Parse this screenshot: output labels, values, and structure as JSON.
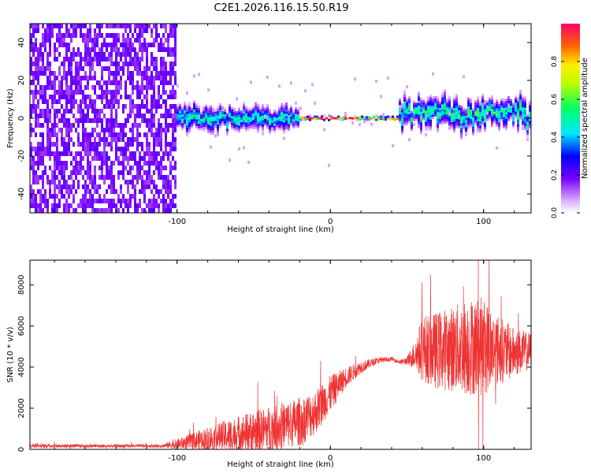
{
  "title": "C2E1.2026.116.15.50.R19",
  "chart_data": [
    {
      "type": "heatmap",
      "description": "spectrogram",
      "xlabel": "Height of straight line (km)",
      "ylabel": "Frequency (Hz)",
      "xlim": [
        -196,
        131
      ],
      "ylim": [
        -50,
        50
      ],
      "xticks": [
        -100,
        0,
        100
      ],
      "xtick_labels": [
        "-100",
        "0",
        "100"
      ],
      "yticks": [
        -40,
        -20,
        0,
        20,
        40
      ],
      "ytick_labels": [
        "-40",
        "-20",
        "0",
        "20",
        "40"
      ],
      "colorbar": {
        "label": "Normalized spectral amplitude",
        "range": [
          0,
          1
        ],
        "ticks": [
          0.0,
          0.2,
          0.4,
          0.6,
          0.8
        ],
        "tick_labels": [
          "0.0",
          "0.2",
          "0.4",
          "0.6",
          "0.8"
        ]
      },
      "regions": [
        {
          "x_range": [
            -196,
            -100
          ],
          "pattern": "broadband noise",
          "freq_range": [
            -50,
            50
          ],
          "amplitude": 0.15
        },
        {
          "x_range": [
            -100,
            -20
          ],
          "pattern": "band near 0 Hz",
          "center_freq": 0,
          "spread_hz": 6,
          "amplitude": 0.45
        },
        {
          "x_range": [
            -20,
            45
          ],
          "pattern": "narrow line at 0 Hz",
          "center_freq": 0,
          "spread_hz": 1,
          "amplitude": 0.95
        },
        {
          "x_range": [
            45,
            131
          ],
          "pattern": "band near 0 Hz with excursions",
          "center_freq": 2,
          "spread_hz": 7,
          "amplitude": 0.5
        }
      ]
    },
    {
      "type": "line",
      "xlabel": "Height of straight line (km)",
      "ylabel": "SNR (10 * v/v)",
      "xlim": [
        -196,
        131
      ],
      "ylim": [
        0,
        9200
      ],
      "xticks": [
        -100,
        0,
        100
      ],
      "xtick_labels": [
        "-100",
        "0",
        "100"
      ],
      "yticks": [
        0,
        2000,
        4000,
        6000,
        8000
      ],
      "ytick_labels": [
        "0",
        "2000",
        "4000",
        "6000",
        "8000"
      ],
      "color": "#ee3333",
      "envelope": {
        "x": [
          -196,
          -150,
          -110,
          -100,
          -80,
          -60,
          -40,
          -20,
          -10,
          0,
          10,
          20,
          30,
          40,
          45,
          50,
          55,
          60,
          70,
          80,
          90,
          100,
          110,
          120,
          131
        ],
        "mean": [
          180,
          160,
          170,
          250,
          500,
          750,
          1000,
          1350,
          1800,
          2700,
          3500,
          4000,
          4300,
          4400,
          4250,
          4300,
          4600,
          4900,
          4800,
          4900,
          5000,
          5000,
          4800,
          4700,
          4800
        ],
        "amp": [
          100,
          80,
          80,
          250,
          600,
          900,
          1100,
          1200,
          1100,
          900,
          500,
          300,
          150,
          100,
          100,
          200,
          700,
          1600,
          1900,
          2100,
          2400,
          2400,
          1700,
          1200,
          900
        ]
      }
    }
  ]
}
